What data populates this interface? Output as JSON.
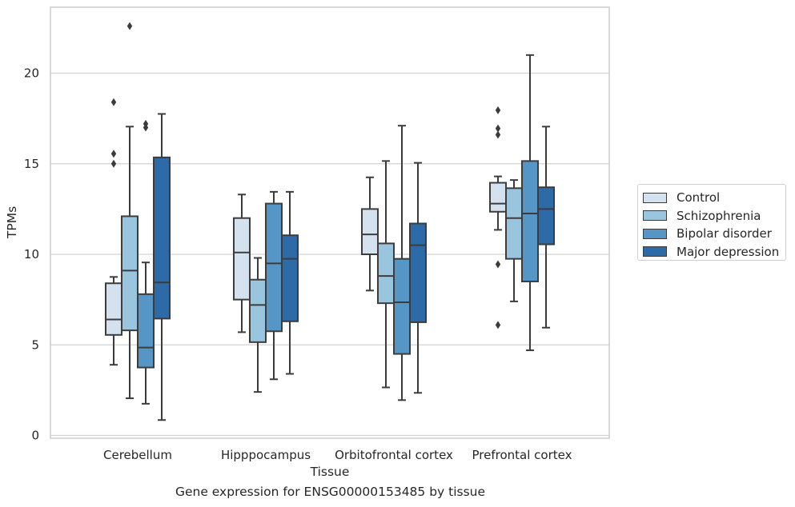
{
  "caption": "Gene expression for ENSG00000153485 by tissue",
  "chart_data": {
    "type": "boxplot",
    "title": "",
    "xlabel": "Tissue",
    "ylabel": "TPMs",
    "ylim": [
      -0.2,
      23.7
    ],
    "yticks": [
      0,
      5,
      10,
      15,
      20
    ],
    "grid": "horizontal",
    "legend_position": "right",
    "categories": [
      "Cerebellum",
      "Hipppocampus",
      "Orbitofrontal cortex",
      "Prefrontal cortex"
    ],
    "series": [
      {
        "name": "Control",
        "color": "#d4e2f0",
        "boxes": [
          {
            "whislo": 3.9,
            "q1": 5.55,
            "med": 6.4,
            "q3": 8.4,
            "whishi": 8.75,
            "fliers": [
              15.0,
              15.55,
              18.4
            ]
          },
          {
            "whislo": 5.7,
            "q1": 7.5,
            "med": 10.1,
            "q3": 12.0,
            "whishi": 13.3,
            "fliers": []
          },
          {
            "whislo": 8.0,
            "q1": 10.0,
            "med": 11.1,
            "q3": 12.5,
            "whishi": 14.25,
            "fliers": []
          },
          {
            "whislo": 11.35,
            "q1": 12.35,
            "med": 12.8,
            "q3": 13.95,
            "whishi": 14.3,
            "fliers": [
              6.1,
              9.45,
              16.6,
              16.95,
              17.95
            ]
          }
        ]
      },
      {
        "name": "Schizophrenia",
        "color": "#9ac5df",
        "boxes": [
          {
            "whislo": 2.05,
            "q1": 5.8,
            "med": 9.1,
            "q3": 12.1,
            "whishi": 17.05,
            "fliers": [
              22.6
            ]
          },
          {
            "whislo": 2.4,
            "q1": 5.15,
            "med": 7.2,
            "q3": 8.6,
            "whishi": 9.8,
            "fliers": []
          },
          {
            "whislo": 2.65,
            "q1": 7.3,
            "med": 8.8,
            "q3": 10.6,
            "whishi": 15.15,
            "fliers": []
          },
          {
            "whislo": 7.4,
            "q1": 9.75,
            "med": 12.0,
            "q3": 13.65,
            "whishi": 14.1,
            "fliers": []
          }
        ]
      },
      {
        "name": "Bipolar disorder",
        "color": "#5696c6",
        "boxes": [
          {
            "whislo": 1.75,
            "q1": 3.75,
            "med": 4.85,
            "q3": 7.8,
            "whishi": 9.55,
            "fliers": [
              17.0,
              17.2
            ]
          },
          {
            "whislo": 3.1,
            "q1": 5.75,
            "med": 9.5,
            "q3": 12.8,
            "whishi": 13.45,
            "fliers": []
          },
          {
            "whislo": 1.95,
            "q1": 4.5,
            "med": 7.35,
            "q3": 9.75,
            "whishi": 17.1,
            "fliers": []
          },
          {
            "whislo": 4.7,
            "q1": 8.5,
            "med": 12.25,
            "q3": 15.15,
            "whishi": 21.0,
            "fliers": []
          }
        ]
      },
      {
        "name": "Major depression",
        "color": "#2c6aa8",
        "boxes": [
          {
            "whislo": 0.85,
            "q1": 6.45,
            "med": 8.45,
            "q3": 15.35,
            "whishi": 17.75,
            "fliers": []
          },
          {
            "whislo": 3.4,
            "q1": 6.3,
            "med": 9.75,
            "q3": 11.05,
            "whishi": 13.45,
            "fliers": []
          },
          {
            "whislo": 2.35,
            "q1": 6.25,
            "med": 10.5,
            "q3": 11.7,
            "whishi": 15.05,
            "fliers": []
          },
          {
            "whislo": 5.95,
            "q1": 10.55,
            "med": 12.5,
            "q3": 13.7,
            "whishi": 17.05,
            "fliers": []
          }
        ]
      }
    ]
  }
}
